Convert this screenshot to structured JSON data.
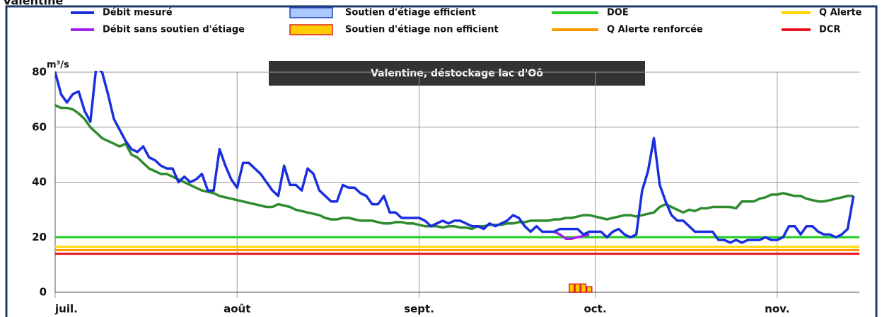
{
  "chart_data": {
    "type": "line",
    "page_title": "Valentine",
    "title": "Valentine, déstockage lac d'Oô",
    "y_label": "m³/s",
    "x": [
      0,
      1,
      2,
      3,
      4,
      5,
      6,
      7,
      8,
      9,
      10,
      11,
      12,
      13,
      14,
      15,
      16,
      17,
      18,
      19,
      20,
      21,
      22,
      23,
      24,
      25,
      26,
      27,
      28,
      29,
      30,
      31,
      32,
      33,
      34,
      35,
      36,
      37,
      38,
      39,
      40,
      41,
      42,
      43,
      44,
      45,
      46,
      47,
      48,
      49,
      50,
      51,
      52,
      53,
      54,
      55,
      56,
      57,
      58,
      59,
      60,
      61,
      62,
      63,
      64,
      65,
      66,
      67,
      68,
      69,
      70,
      71,
      72,
      73,
      74,
      75,
      76,
      77,
      78,
      79,
      80,
      81,
      82,
      83,
      84,
      85,
      86,
      87,
      88,
      89,
      90,
      91,
      92,
      93,
      94,
      95,
      96,
      97,
      98,
      99,
      100,
      101,
      102,
      103,
      104,
      105,
      106,
      107,
      108,
      109,
      110,
      111,
      112,
      113,
      114,
      115,
      116,
      117,
      118,
      119,
      120,
      121,
      122,
      123,
      124,
      125,
      126,
      127,
      128,
      129,
      130,
      131,
      132,
      133,
      134,
      135,
      136
    ],
    "xlim": [
      0,
      137
    ],
    "xticks": [
      {
        "value": 0,
        "label": "juil."
      },
      {
        "value": 31,
        "label": "août"
      },
      {
        "value": 62,
        "label": "sept."
      },
      {
        "value": 92,
        "label": "oct."
      },
      {
        "value": 123,
        "label": "nov."
      }
    ],
    "ylim": [
      0,
      80
    ],
    "yticks": [
      0,
      20,
      40,
      60,
      80
    ],
    "grid": true,
    "series": [
      {
        "name": "Débit mesuré",
        "color": "#1a2ee0",
        "values": [
          80,
          72,
          69,
          72,
          73,
          66,
          62,
          82,
          80,
          72,
          63,
          59,
          55,
          52,
          51,
          53,
          49,
          48,
          46,
          45,
          45,
          40,
          42,
          40,
          41,
          43,
          37,
          37,
          52,
          46,
          41,
          38,
          47,
          47,
          45,
          43,
          40,
          37,
          35,
          46,
          39,
          39,
          37,
          45,
          43,
          37,
          35,
          33,
          33,
          39,
          38,
          38,
          36,
          35,
          32,
          32,
          35,
          29,
          29,
          27,
          27,
          27,
          27,
          26,
          24,
          25,
          26,
          25,
          26,
          26,
          25,
          24,
          24,
          23,
          25,
          24,
          25,
          26,
          28,
          27,
          24,
          22,
          24,
          22,
          22,
          22,
          23,
          23,
          23,
          23,
          21,
          22,
          22,
          22,
          20,
          22,
          23,
          21,
          20,
          21,
          37,
          44,
          56,
          39,
          33,
          28,
          26,
          26,
          24,
          22,
          22,
          22,
          22,
          19,
          19,
          18,
          19,
          18,
          19,
          19,
          19,
          20,
          19,
          19,
          20,
          24,
          24,
          21,
          24,
          24,
          22,
          21,
          21,
          20,
          21,
          23,
          35
        ]
      },
      {
        "name": "Débit sans soutien d'étiage",
        "color": "#a020f0",
        "x": [
          85,
          86,
          87,
          88,
          89,
          90,
          91
        ],
        "values": [
          22,
          21,
          19.5,
          19.5,
          20,
          20.5,
          21
        ]
      },
      {
        "color": "#2e8b2e",
        "values": [
          68,
          67,
          67,
          66.5,
          65,
          63,
          60,
          58,
          56,
          55,
          54,
          53,
          54,
          50,
          49,
          47,
          45,
          44,
          43,
          43,
          42,
          41,
          40,
          39,
          38,
          37,
          36.5,
          36,
          35,
          34.5,
          34,
          33.5,
          33,
          32.5,
          32,
          31.5,
          31,
          31,
          32,
          31.5,
          31,
          30,
          29.5,
          29,
          28.5,
          28,
          27,
          26.5,
          26.5,
          27,
          27,
          26.5,
          26,
          26,
          26,
          25.5,
          25,
          25,
          25.5,
          25.5,
          25,
          25,
          24.5,
          24,
          24,
          24,
          23.5,
          24,
          24,
          23.5,
          23.5,
          23,
          24,
          24,
          24.5,
          24.5,
          24.5,
          25,
          25,
          25.5,
          25.5,
          26,
          26,
          26,
          26,
          26.5,
          26.5,
          27,
          27,
          27.5,
          28,
          28,
          27.5,
          27,
          26.5,
          27,
          27.5,
          28,
          28,
          27.5,
          28,
          28.5,
          29,
          31,
          32,
          31,
          30,
          29,
          30,
          29.5,
          30.5,
          30.5,
          31,
          31,
          31,
          31,
          30.5,
          33,
          33,
          33,
          34,
          34.5,
          35.5,
          35.5,
          36,
          35.5,
          35,
          35,
          34,
          33.5,
          33,
          33,
          33.5,
          34,
          34.5,
          35,
          35
        ]
      }
    ],
    "bars": [
      {
        "name": "Soutien d'étiage efficient",
        "color": "#a8c8ff",
        "edge": "#2040c0",
        "x": [
          88,
          89
        ],
        "values": [
          0.8,
          0.5
        ]
      },
      {
        "name": "Soutien d'étiage non efficient",
        "color": "#ffcc00",
        "edge": "#e02020",
        "x": [
          88,
          89,
          90,
          91
        ],
        "values": [
          3,
          3,
          3,
          2
        ]
      }
    ],
    "thresholds": [
      {
        "name": "DOE",
        "color": "#22cc22",
        "value": 20
      },
      {
        "name": "Q Alerte",
        "color": "#ffd700",
        "value": 16.5
      },
      {
        "name": "Q Alerte renforcée",
        "color": "#ff9900",
        "value": 15.3
      },
      {
        "name": "DCR",
        "color": "#e8141c",
        "value": 14
      }
    ]
  }
}
